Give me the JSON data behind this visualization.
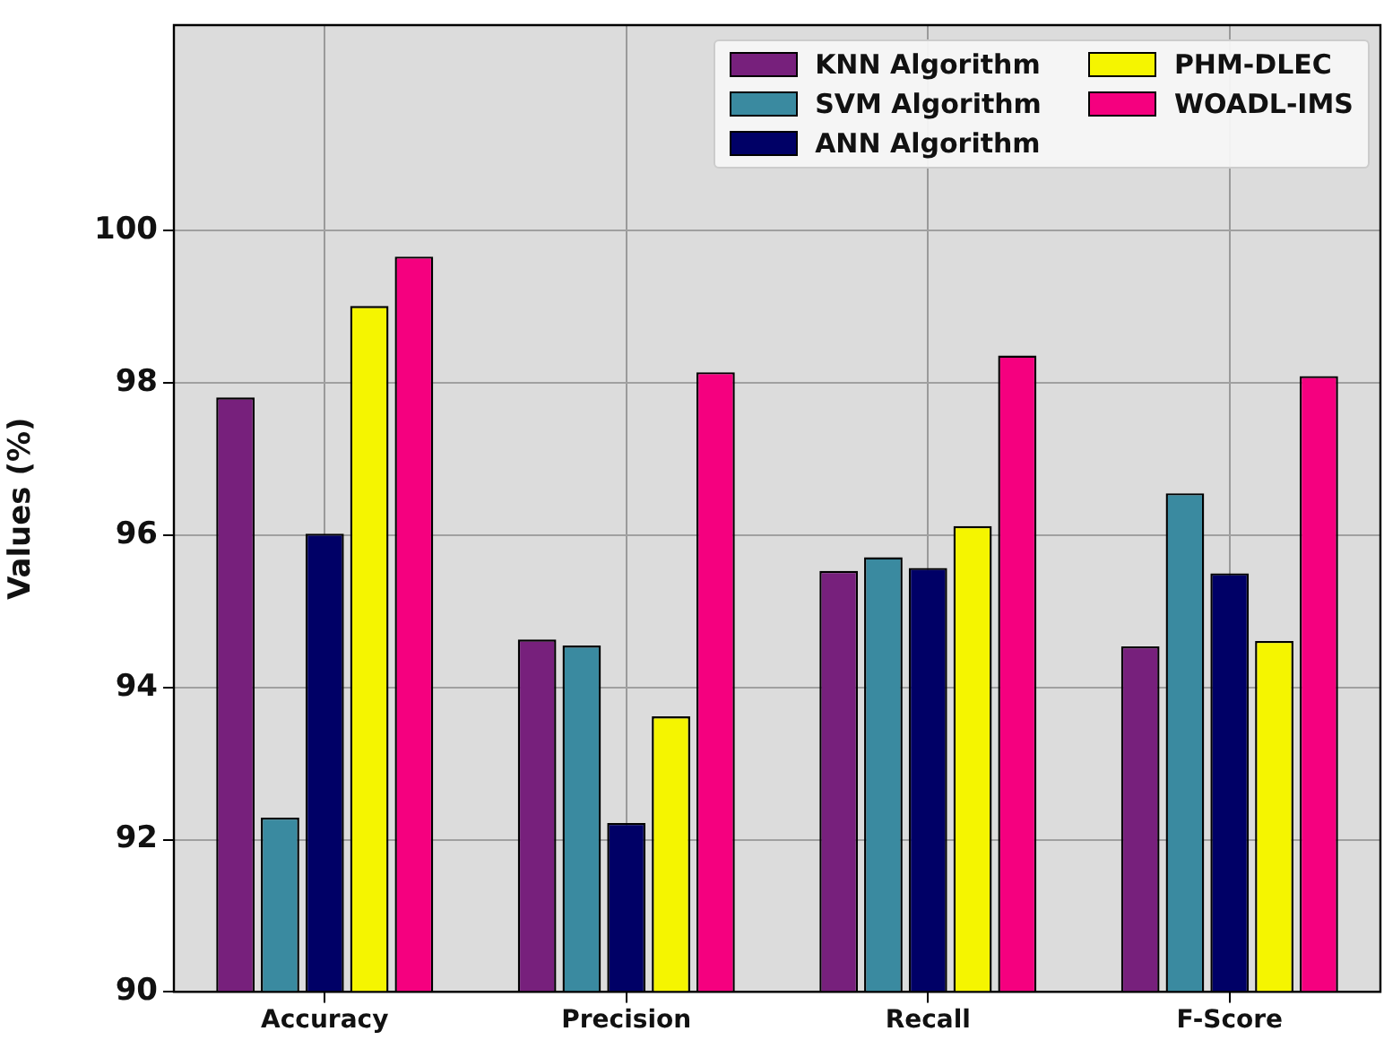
{
  "chart_data": {
    "type": "bar",
    "ylabel": "Values (%)",
    "categories": [
      "Accuracy",
      "Precision",
      "Recall",
      "F-Score"
    ],
    "series": [
      {
        "name": "KNN Algorithm",
        "color": "#77207c",
        "values": [
          97.81,
          94.63,
          95.53,
          94.54
        ]
      },
      {
        "name": "SVM Algorithm",
        "color": "#3a8aa0",
        "values": [
          92.29,
          94.55,
          95.71,
          96.55
        ]
      },
      {
        "name": "ANN Algorithm",
        "color": "#000066",
        "values": [
          96.02,
          92.22,
          95.57,
          95.5
        ]
      },
      {
        "name": "PHM-DLEC",
        "color": "#f5f500",
        "values": [
          99.01,
          93.62,
          96.12,
          94.61
        ]
      },
      {
        "name": "WOADL-IMS",
        "color": "#f5007f",
        "values": [
          99.66,
          98.14,
          98.36,
          98.09
        ]
      }
    ],
    "ylim": [
      90,
      102.7
    ],
    "yticks": [
      90,
      92,
      94,
      96,
      98,
      100
    ],
    "grid": true,
    "legend": "top right"
  }
}
